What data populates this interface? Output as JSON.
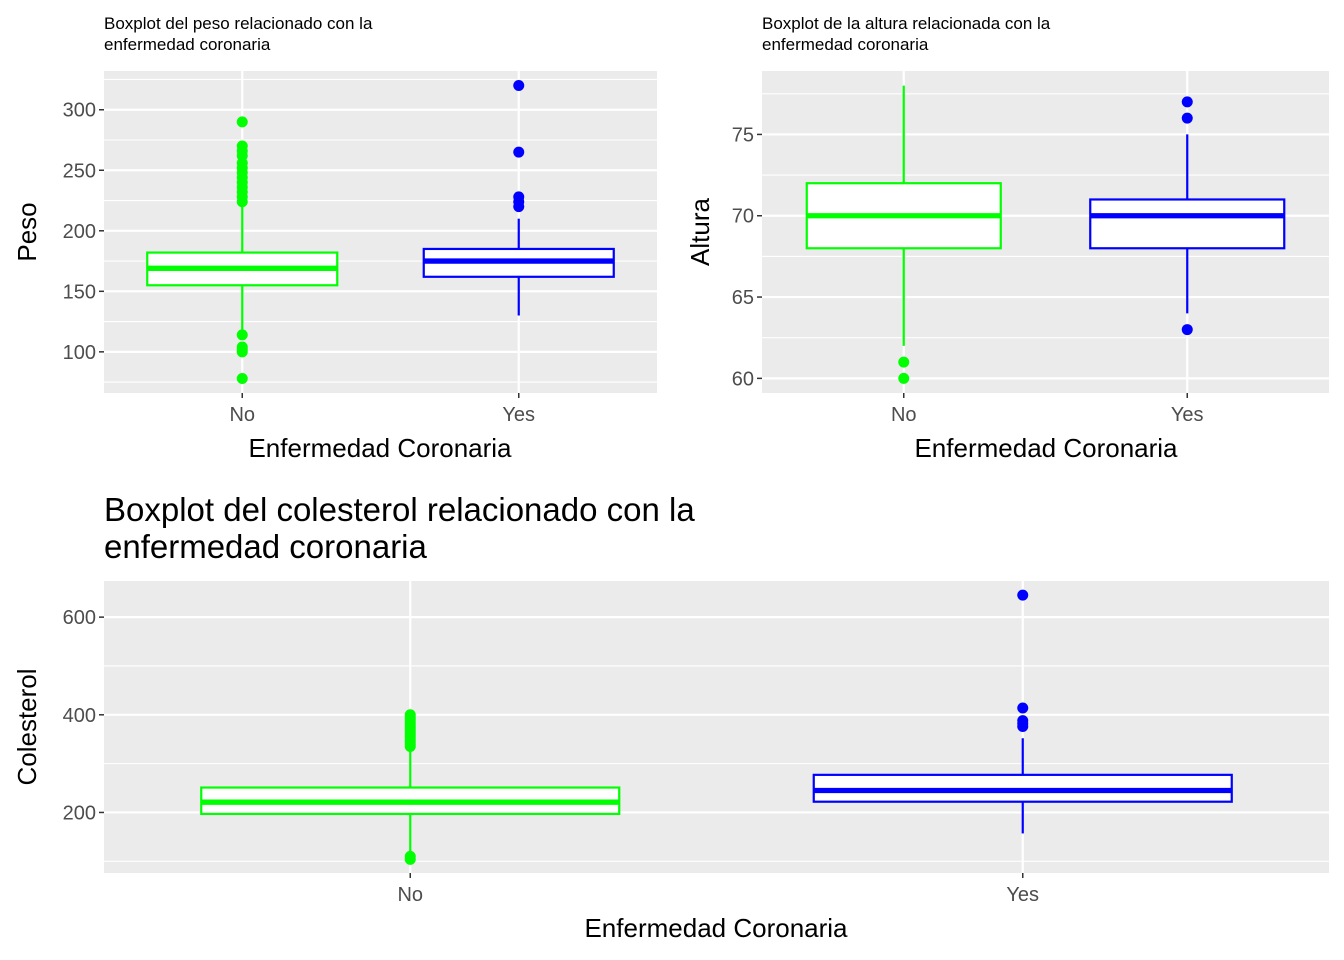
{
  "chart_data": [
    {
      "type": "boxplot",
      "title": "Boxplot del peso relacionado con la enfermedad coronaria",
      "title_lines": [
        "Boxplot del peso relacionado con la",
        "enfermedad coronaria"
      ],
      "xlabel": "Enfermedad Coronaria",
      "ylabel": "Peso",
      "categories": [
        "No",
        "Yes"
      ],
      "ylim": [
        66,
        332
      ],
      "yticks": [
        100,
        150,
        200,
        250,
        300
      ],
      "grid": true,
      "series": [
        {
          "category": "No",
          "color": "#00ff00",
          "whisker_low": 118,
          "q1": 155,
          "median": 169,
          "q3": 182,
          "whisker_high": 222,
          "outliers": [
            78,
            100,
            102,
            104,
            114,
            224,
            228,
            232,
            236,
            240,
            244,
            248,
            252,
            256,
            262,
            266,
            270,
            290
          ]
        },
        {
          "category": "Yes",
          "color": "#0000ff",
          "whisker_low": 130,
          "q1": 162,
          "median": 175,
          "q3": 185,
          "whisker_high": 210,
          "outliers": [
            220,
            224,
            228,
            265,
            320
          ]
        }
      ]
    },
    {
      "type": "boxplot",
      "title": "Boxplot de la altura relacionada con la enfermedad coronaria",
      "title_lines": [
        "Boxplot de la altura relacionada con la",
        "enfermedad coronaria"
      ],
      "xlabel": "Enfermedad Coronaria",
      "ylabel": "Altura",
      "categories": [
        "No",
        "Yes"
      ],
      "ylim": [
        59.1,
        78.9
      ],
      "yticks": [
        60,
        65,
        70,
        75
      ],
      "grid": true,
      "series": [
        {
          "category": "No",
          "color": "#00ff00",
          "whisker_low": 62,
          "q1": 68,
          "median": 70,
          "q3": 72,
          "whisker_high": 78,
          "outliers": [
            60,
            61
          ]
        },
        {
          "category": "Yes",
          "color": "#0000ff",
          "whisker_low": 64,
          "q1": 68,
          "median": 70,
          "q3": 71,
          "whisker_high": 75,
          "outliers": [
            63,
            76,
            77
          ]
        }
      ]
    },
    {
      "type": "boxplot",
      "title": "Boxplot del colesterol relacionado con la enfermedad coronaria",
      "title_lines": [
        "Boxplot del colesterol relacionado con la",
        "enfermedad coronaria"
      ],
      "xlabel": "Enfermedad Coronaria",
      "ylabel": "Colesterol",
      "categories": [
        "No",
        "Yes"
      ],
      "ylim": [
        76,
        674
      ],
      "yticks": [
        200,
        400,
        600
      ],
      "grid": true,
      "series": [
        {
          "category": "No",
          "color": "#00ff00",
          "whisker_low": 120,
          "q1": 197,
          "median": 221,
          "q3": 251,
          "whisker_high": 330,
          "outliers": [
            104,
            110,
            335,
            340,
            345,
            350,
            355,
            360,
            365,
            370,
            375,
            380,
            385,
            390,
            395,
            400
          ]
        },
        {
          "category": "Yes",
          "color": "#0000ff",
          "whisker_low": 157,
          "q1": 222,
          "median": 245,
          "q3": 277,
          "whisker_high": 352,
          "outliers": [
            376,
            382,
            388,
            414,
            645
          ]
        }
      ]
    }
  ]
}
